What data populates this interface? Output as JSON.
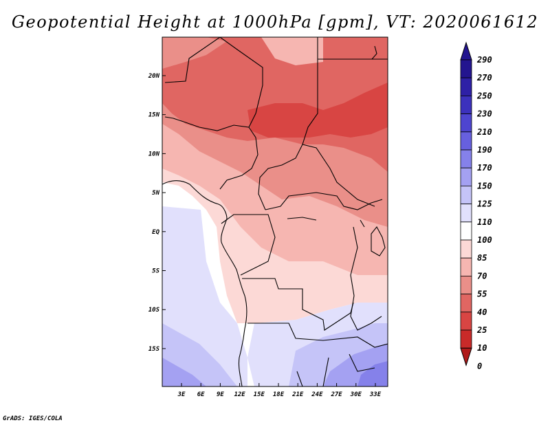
{
  "title": "Geopotential Height at 1000hPa [gpm], VT: 2020061612",
  "footer": "GrADS: IGES/COLA",
  "map": {
    "variable": "Geopotential Height",
    "level": "1000hPa",
    "units": "gpm",
    "valid_time": "2020061612",
    "lat_ticks": [
      "20N",
      "15N",
      "10N",
      "5N",
      "EQ",
      "5S",
      "10S",
      "15S"
    ],
    "lon_ticks": [
      "3E",
      "6E",
      "9E",
      "12E",
      "15E",
      "18E",
      "21E",
      "24E",
      "27E",
      "30E",
      "33E"
    ]
  },
  "colorbar": {
    "levels": [
      "290",
      "270",
      "250",
      "230",
      "210",
      "190",
      "170",
      "150",
      "125",
      "110",
      "100",
      "85",
      "70",
      "55",
      "40",
      "25",
      "10",
      "0"
    ],
    "colors": [
      "#23158f",
      "#2e20a6",
      "#3c31bd",
      "#4e45d0",
      "#6760df",
      "#8581ea",
      "#a4a1f2",
      "#c5c4f8",
      "#e1e0fc",
      "#ffffff",
      "#fcd9d6",
      "#f6b6b1",
      "#ea8f89",
      "#e06662",
      "#d84543",
      "#c92a29",
      "#b01a1a"
    ]
  }
}
